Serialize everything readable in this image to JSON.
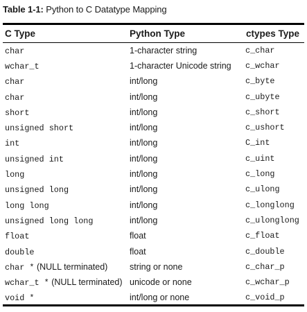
{
  "caption": {
    "label": "Table 1-1:",
    "title": " Python to C Datatype Mapping"
  },
  "table": {
    "headers": [
      "C Type",
      "Python Type",
      "ctypes Type"
    ],
    "rows": [
      {
        "c_type": "char",
        "c_note": "",
        "python_type": "1-character string",
        "ctypes_type": "c_char"
      },
      {
        "c_type": "wchar_t",
        "c_note": "",
        "python_type": "1-character Unicode string",
        "ctypes_type": "c_wchar"
      },
      {
        "c_type": "char",
        "c_note": "",
        "python_type": "int/long",
        "ctypes_type": "c_byte"
      },
      {
        "c_type": "char",
        "c_note": "",
        "python_type": "int/long",
        "ctypes_type": "c_ubyte"
      },
      {
        "c_type": "short",
        "c_note": "",
        "python_type": "int/long",
        "ctypes_type": "c_short"
      },
      {
        "c_type": "unsigned short",
        "c_note": "",
        "python_type": "int/long",
        "ctypes_type": "c_ushort"
      },
      {
        "c_type": "int",
        "c_note": "",
        "python_type": "int/long",
        "ctypes_type": "C_int"
      },
      {
        "c_type": "unsigned int",
        "c_note": "",
        "python_type": "int/long",
        "ctypes_type": "c_uint"
      },
      {
        "c_type": "long",
        "c_note": "",
        "python_type": "int/long",
        "ctypes_type": "c_long"
      },
      {
        "c_type": "unsigned long",
        "c_note": "",
        "python_type": "int/long",
        "ctypes_type": "c_ulong"
      },
      {
        "c_type": "long long",
        "c_note": "",
        "python_type": "int/long",
        "ctypes_type": "c_longlong"
      },
      {
        "c_type": "unsigned long long",
        "c_note": "",
        "python_type": "int/long",
        "ctypes_type": "c_ulonglong"
      },
      {
        "c_type": "float",
        "c_note": "",
        "python_type": "float",
        "ctypes_type": "c_float"
      },
      {
        "c_type": "double",
        "c_note": "",
        "python_type": "float",
        "ctypes_type": "c_double"
      },
      {
        "c_type": "char *",
        "c_note": " (NULL terminated)",
        "python_type": "string or none",
        "ctypes_type": "c_char_p"
      },
      {
        "c_type": "wchar_t *",
        "c_note": " (NULL terminated)",
        "python_type": "unicode or none",
        "ctypes_type": "c_wchar_p"
      },
      {
        "c_type": "void *",
        "c_note": "",
        "python_type": "int/long or none",
        "ctypes_type": "c_void_p"
      }
    ]
  }
}
